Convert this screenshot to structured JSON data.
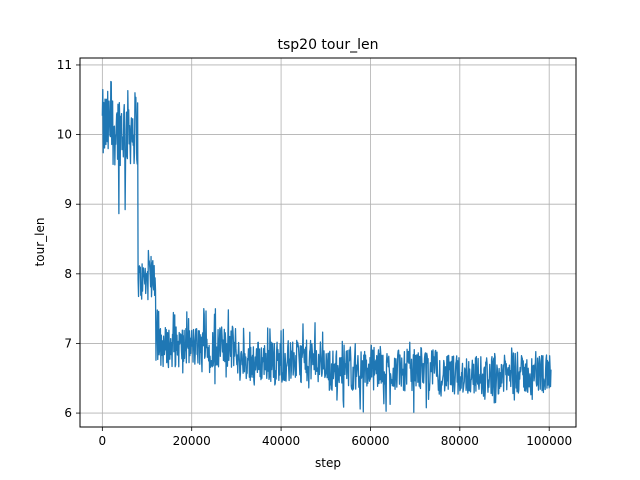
{
  "chart_data": {
    "type": "line",
    "title": "tsp20 tour_len",
    "xlabel": "step",
    "ylabel": "tour_len",
    "xlim": [
      -5000,
      106000
    ],
    "ylim": [
      5.8,
      11.1
    ],
    "xticks": [
      0,
      20000,
      40000,
      60000,
      80000,
      100000
    ],
    "xtick_labels": [
      "0",
      "20000",
      "40000",
      "60000",
      "80000",
      "100000"
    ],
    "yticks": [
      6,
      7,
      8,
      9,
      10,
      11
    ],
    "ytick_labels": [
      "6",
      "7",
      "8",
      "9",
      "10",
      "11"
    ],
    "grid": true,
    "series": [
      {
        "color": "#1f77b4",
        "x_range": [
          0,
          100500
        ],
        "segments": [
          {
            "x_start": 0,
            "x_end": 8000,
            "center": 10.1,
            "amplitude": 0.55,
            "min": 8.8,
            "max": 10.8
          },
          {
            "x_start": 8000,
            "x_end": 12000,
            "center": 7.9,
            "amplitude": 0.3,
            "min": 7.6,
            "max": 8.35
          },
          {
            "x_start": 12000,
            "x_end": 30000,
            "center": 6.95,
            "amplitude": 0.3,
            "min": 6.4,
            "max": 7.5
          },
          {
            "x_start": 30000,
            "x_end": 50000,
            "center": 6.75,
            "amplitude": 0.3,
            "min": 6.3,
            "max": 7.3
          },
          {
            "x_start": 50000,
            "x_end": 75000,
            "center": 6.62,
            "amplitude": 0.3,
            "min": 6.0,
            "max": 7.05
          },
          {
            "x_start": 75000,
            "x_end": 100500,
            "center": 6.55,
            "amplitude": 0.28,
            "min": 6.1,
            "max": 6.95
          }
        ]
      }
    ]
  }
}
